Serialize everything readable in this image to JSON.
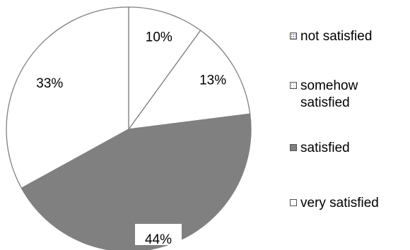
{
  "chart_data": {
    "type": "pie",
    "title": "",
    "slices": [
      {
        "label": "not satisfied",
        "value": 10,
        "display": "10%",
        "color": "#ffffff",
        "legend_pattern": "purple-dots"
      },
      {
        "label": "somehow satisfied",
        "value": 13,
        "display": "13%",
        "color": "#ffffff",
        "legend_pattern": "grey-dots"
      },
      {
        "label": "satisfied",
        "value": 44,
        "display": "44%",
        "color": "#808080",
        "legend_pattern": "solid"
      },
      {
        "label": "very satisfied",
        "value": 33,
        "display": "33%",
        "color": "#ffffff",
        "legend_pattern": "empty"
      }
    ],
    "start_angle_deg": 0,
    "direction": "clockwise",
    "legend_position": "right",
    "stroke_color": "#808080"
  },
  "legend": {
    "items": [
      {
        "label_line1": "not satisfied",
        "label_line2": ""
      },
      {
        "label_line1": "somehow",
        "label_line2": "satisfied"
      },
      {
        "label_line1": "satisfied",
        "label_line2": ""
      },
      {
        "label_line1": "very satisfied",
        "label_line2": ""
      }
    ]
  }
}
